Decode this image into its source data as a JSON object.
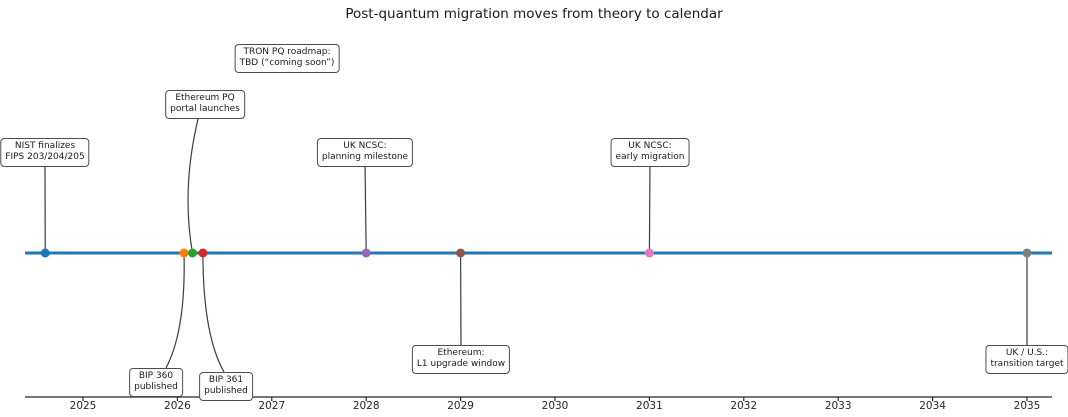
{
  "title": "Post-quantum migration moves from theory to calendar",
  "colors": {
    "timeline": "#1f77b4",
    "connector": "#3c3c3c",
    "axis": "#262626",
    "box_border": "#4d4d4d",
    "box_bg": "#ffffff",
    "text": "#1a1a1a"
  },
  "chart_data": {
    "type": "scatter",
    "subtype": "timeline",
    "title": "Post-quantum migration moves from theory to calendar",
    "xlabel": "",
    "ylabel": "",
    "legend": "none",
    "grid": false,
    "x_axis": {
      "tick_labels": [
        "2025",
        "2026",
        "2027",
        "2028",
        "2029",
        "2030",
        "2031",
        "2032",
        "2033",
        "2034",
        "2035"
      ],
      "tick_years": [
        2025,
        2026,
        2027,
        2028,
        2029,
        2030,
        2031,
        2032,
        2033,
        2034,
        2035
      ],
      "range": [
        2024.39,
        2035.27
      ]
    },
    "events": [
      {
        "id": "nist-fips",
        "label_lines": [
          "NIST finalizes",
          "FIPS 203/204/205"
        ],
        "year": 2024.6,
        "marker_color": "#1f77b4",
        "label_position": "above"
      },
      {
        "id": "bip-360",
        "label_lines": [
          "BIP 360",
          "published"
        ],
        "year": 2026.07,
        "marker_color": "#ff7f0e",
        "label_position": "below"
      },
      {
        "id": "ethereum-portal",
        "label_lines": [
          "Ethereum PQ",
          "portal launches"
        ],
        "year": 2026.16,
        "marker_color": "#2ca02c",
        "label_position": "above"
      },
      {
        "id": "bip-361",
        "label_lines": [
          "BIP 361",
          "published"
        ],
        "year": 2026.27,
        "marker_color": "#d62728",
        "label_position": "below"
      },
      {
        "id": "tron-roadmap",
        "label_lines": [
          "TRON PQ roadmap:",
          "TBD (“coming soon”)"
        ],
        "year": null,
        "marker_color": null,
        "label_position": "floating"
      },
      {
        "id": "uk-ncsc-planning",
        "label_lines": [
          "UK NCSC:",
          "planning milestone"
        ],
        "year": 2028,
        "marker_color": "#9467bd",
        "label_position": "above"
      },
      {
        "id": "ethereum-l1",
        "label_lines": [
          "Ethereum:",
          "L1 upgrade window"
        ],
        "year": 2029,
        "marker_color": "#8c564b",
        "label_position": "below"
      },
      {
        "id": "uk-ncsc-early",
        "label_lines": [
          "UK NCSC:",
          "early migration"
        ],
        "year": 2031,
        "marker_color": "#e377c2",
        "label_position": "above"
      },
      {
        "id": "uk-us-target",
        "label_lines": [
          "UK / U.S.:",
          "transition target"
        ],
        "year": 2035,
        "marker_color": "#7f7f7f",
        "label_position": "below"
      }
    ]
  }
}
